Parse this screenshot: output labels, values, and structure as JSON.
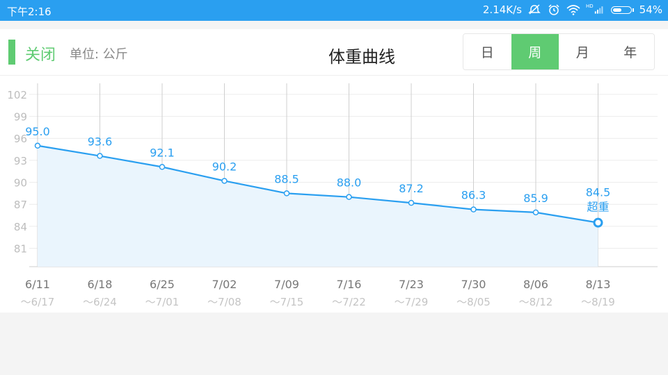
{
  "status_bar": {
    "time": "下午2:16",
    "net_speed": "2.14K/s",
    "battery": "54%",
    "battery_level": 0.54,
    "hd_badge": "HD",
    "icons": [
      "mute-icon",
      "alarm-icon",
      "wifi-icon",
      "signal-icon",
      "battery-icon"
    ]
  },
  "header": {
    "close_label": "关闭",
    "unit_label": "单位: 公斤",
    "title": "体重曲线",
    "period_tabs": [
      {
        "label": "日",
        "active": false
      },
      {
        "label": "周",
        "active": true
      },
      {
        "label": "月",
        "active": false
      },
      {
        "label": "年",
        "active": false
      }
    ],
    "accent_color": "#5fcb72"
  },
  "chart_data": {
    "type": "area",
    "title": "",
    "xlabel": "",
    "ylabel": "",
    "ylim": [
      78.5,
      103.5
    ],
    "y_ticks": [
      81,
      84,
      87,
      90,
      93,
      96,
      99,
      102
    ],
    "categories": [
      "6/11",
      "6/18",
      "6/25",
      "7/02",
      "7/09",
      "7/16",
      "7/23",
      "7/30",
      "8/06",
      "8/13"
    ],
    "sub_categories": [
      "～6/17",
      "～6/24",
      "～7/01",
      "～7/08",
      "～7/15",
      "～7/22",
      "～7/29",
      "～8/05",
      "～8/12",
      "～8/19"
    ],
    "values": [
      95.0,
      93.6,
      92.1,
      90.2,
      88.5,
      88.0,
      87.2,
      86.3,
      85.9,
      84.5
    ],
    "value_labels": [
      "95.0",
      "93.6",
      "92.1",
      "90.2",
      "88.5",
      "88.0",
      "87.2",
      "86.3",
      "85.9",
      "84.5"
    ],
    "latest_annotation": "超重",
    "line_color": "#2a9ff0",
    "fill_color": "#eaf5fd",
    "grid": true
  }
}
